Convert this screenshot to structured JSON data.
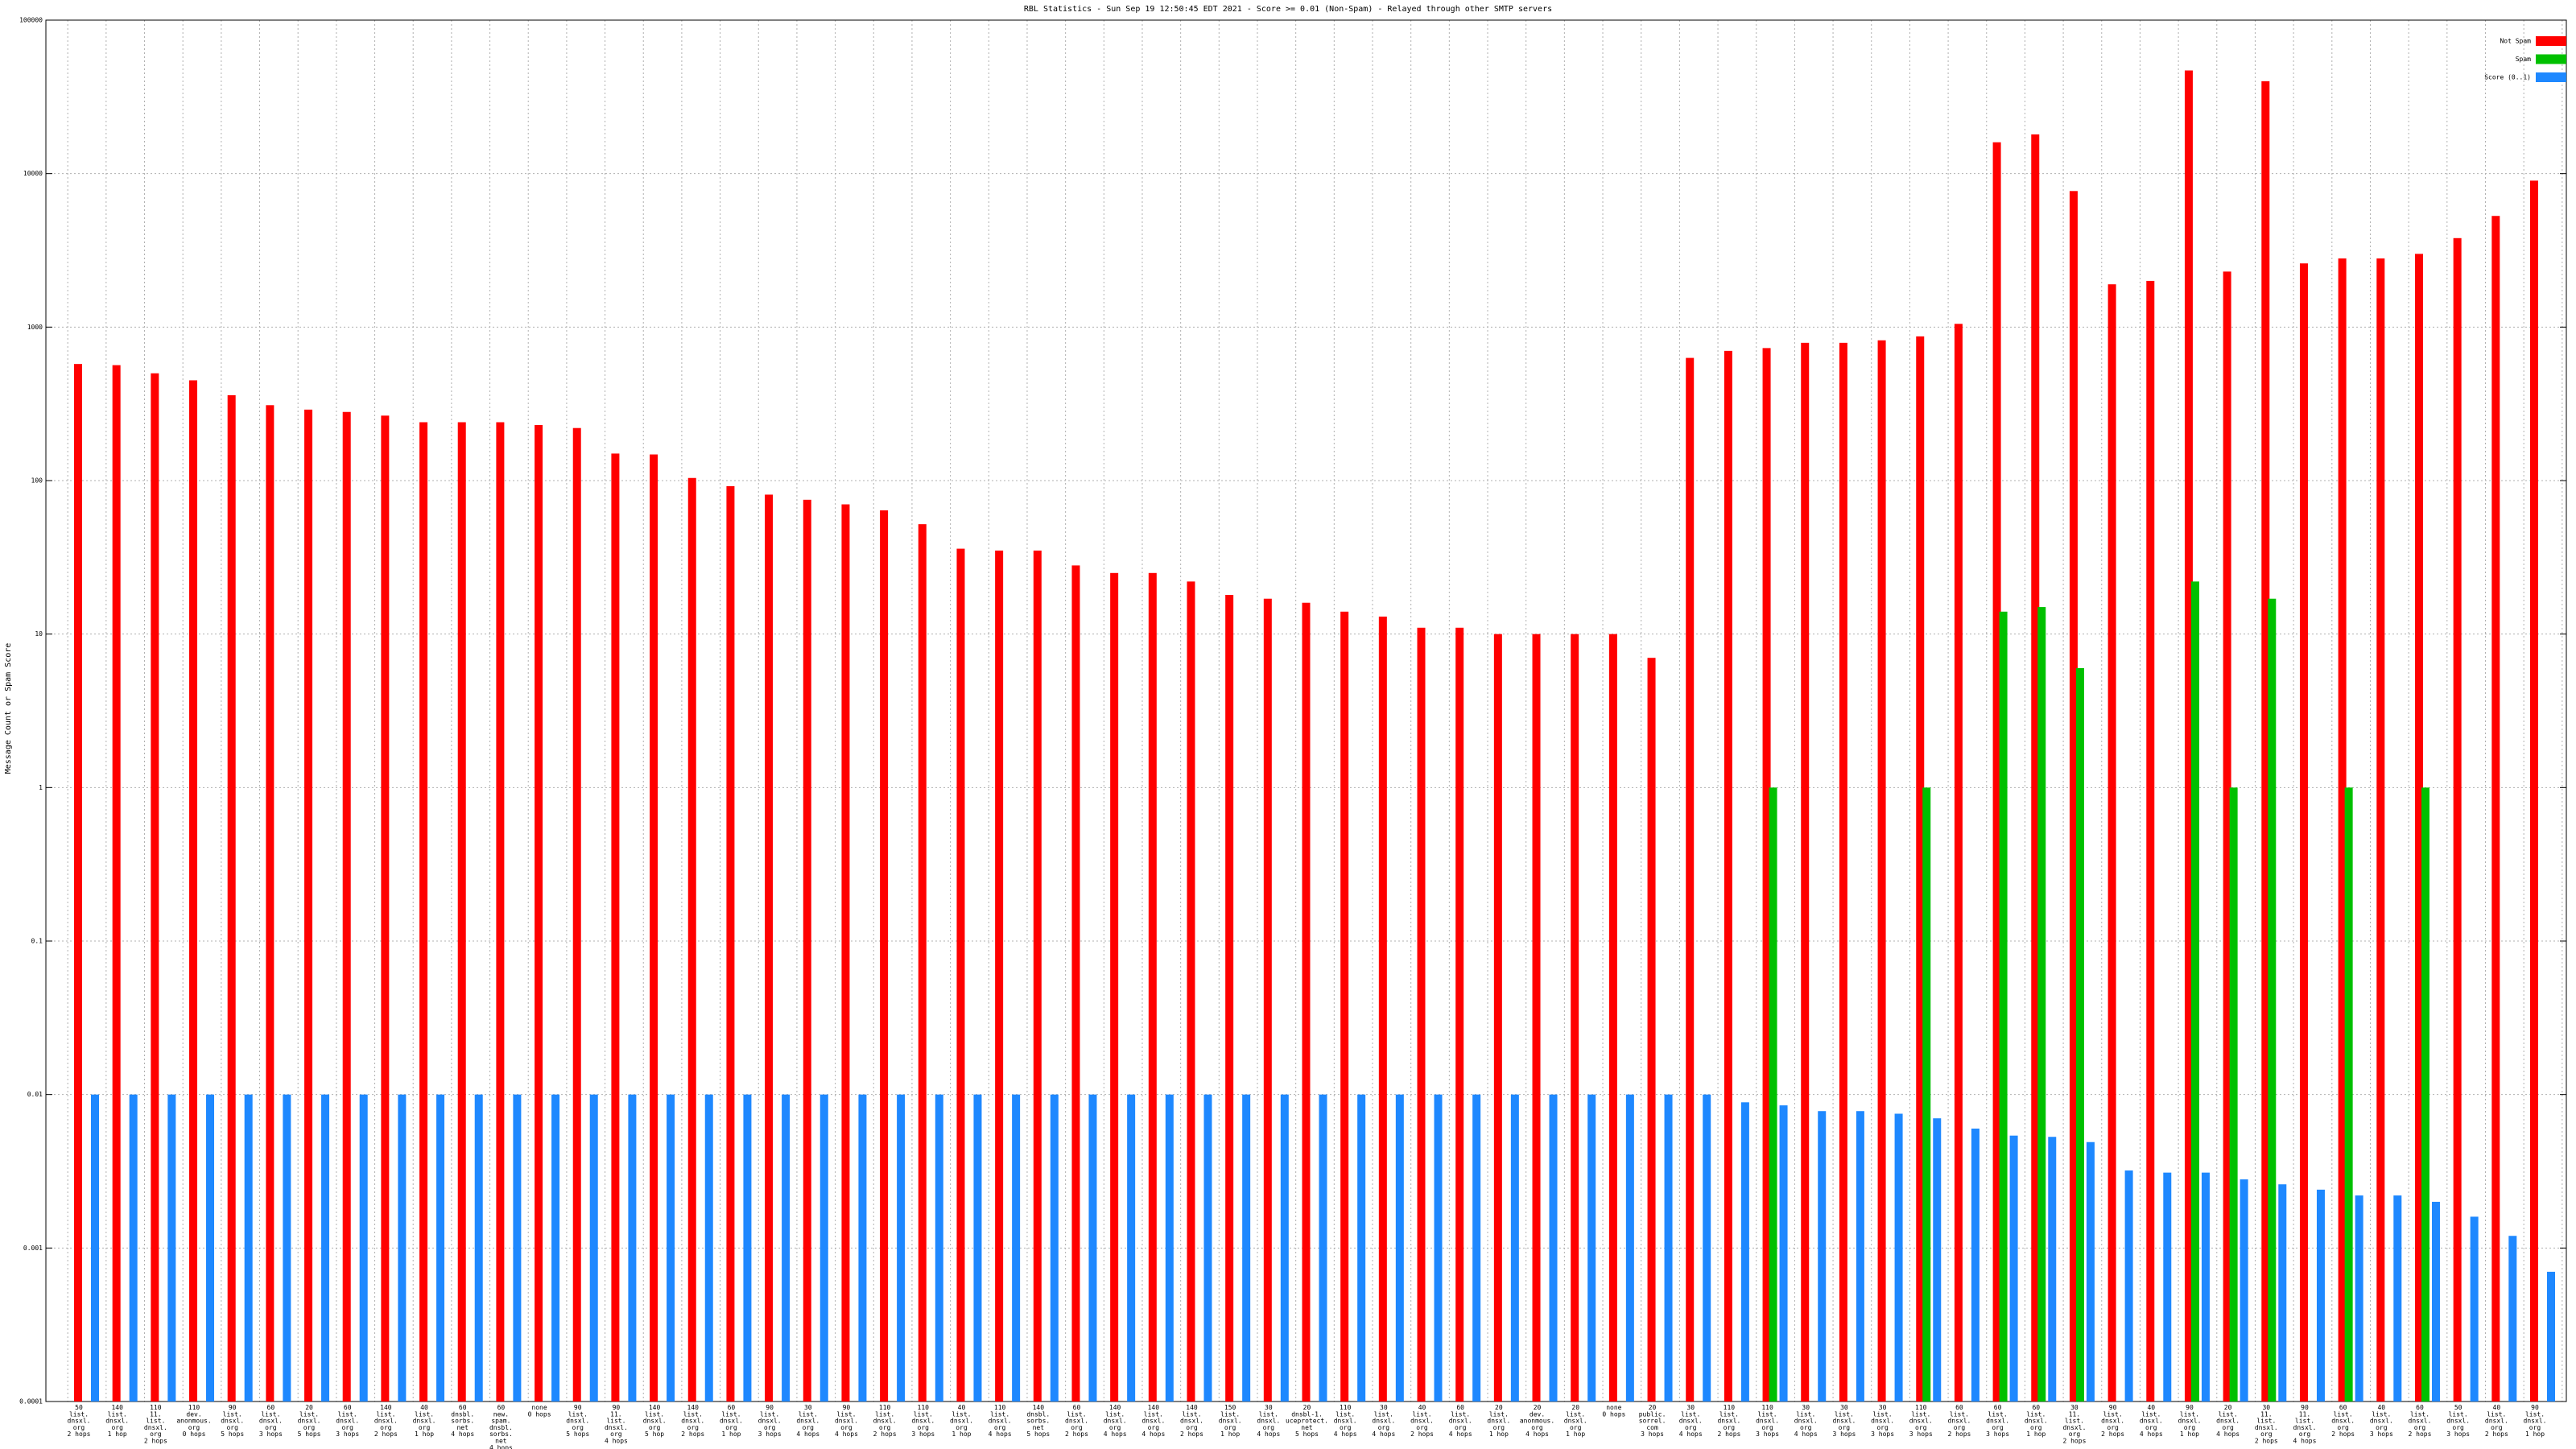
{
  "chart_data": {
    "type": "bar",
    "title": "RBL Statistics - Sun Sep 19 12:50:45 EDT 2021 - Score >= 0.01 (Non-Spam) - Relayed through other SMTP servers",
    "y_label": "Message Count or Spam Score",
    "log_scale": true,
    "grid": true,
    "legend": "top-right",
    "ylim": [
      0.0001,
      100000
    ],
    "yticks": [
      0.0001,
      0.001,
      0.01,
      0.1,
      1,
      10,
      100,
      1000,
      10000,
      100000
    ],
    "categories": [
      "50\nlist.\ndnsxl.\norg\n2 hops",
      "140\nlist.\ndnsxl.\norg\n1 hop",
      "110\n11.\nlist.\ndnsxl.\norg\n2 hops",
      "110\ndev.\nanonmous.\norg\n0 hops",
      "90\nlist.\ndnsxl.\norg\n5 hops",
      "60\nlist.\ndnsxl.\norg\n3 hops",
      "20\nlist.\ndnsxl.\norg\n5 hops",
      "60\nlist.\ndnsxl.\norg\n3 hops",
      "140\nlist.\ndnsxl.\norg\n2 hops",
      "40\nlist.\ndnsxl.\norg\n1 hop",
      "60\ndnsbl.\nsorbs.\nnet\n4 hops",
      "60\nnew.\nspam.\ndnsbl.\nsorbs.\nnet\n4 hops",
      "none\n0 hops",
      "90\nlist.\ndnsxl.\norg\n5 hops",
      "90\n11.\nlist.\ndnsxl.\norg\n4 hops",
      "140\nlist.\ndnsxl.\norg\n5 hop",
      "140\nlist.\ndnsxl.\norg\n2 hops",
      "60\nlist.\ndnsxl.\norg\n1 hop",
      "90\nlist.\ndnsxl.\norg\n3 hops",
      "30\nlist.\ndnsxl.\norg\n4 hops",
      "90\nlist.\ndnsxl.\norg\n4 hops",
      "110\nlist.\ndnsxl.\norg\n2 hops",
      "110\nlist.\ndnsxl.\norg\n3 hops",
      "40\nlist.\ndnsxl.\norg\n1 hop",
      "110\nlist.\ndnsxl.\norg\n4 hops",
      "140\ndnsbl.\nsorbs.\nnet\n5 hops",
      "60\nlist.\ndnsxl.\norg\n2 hops",
      "140\nlist.\ndnsxl.\norg\n4 hops",
      "140\nlist.\ndnsxl.\norg\n4 hops",
      "140\nlist.\ndnsxl.\norg\n2 hops",
      "150\nlist.\ndnsxl.\norg\n1 hop",
      "30\nlist.\ndnsxl.\norg\n4 hops",
      "20\ndnsbl-1.\nuceprotect.\nnet\n5 hops",
      "110\nlist.\ndnsxl.\norg\n4 hops",
      "30\nlist.\ndnsxl.\norg\n4 hops",
      "40\nlist.\ndnsxl.\norg\n2 hops",
      "60\nlist.\ndnsxl.\norg\n4 hops",
      "20\nlist.\ndnsxl.\norg\n1 hop",
      "20\ndev.\nanonmous.\norg\n4 hops",
      "20\nlist.\ndnsxl.\norg\n1 hop",
      "none\n0 hops",
      "20\npublic.\nsorrel.\ncom\n3 hops",
      "30\nlist.\ndnsxl.\norg\n4 hops",
      "110\nlist.\ndnsxl.\norg\n2 hops",
      "110\nlist.\ndnsxl.\norg\n3 hops",
      "30\nlist.\ndnsxl.\norg\n4 hops",
      "30\nlist.\ndnsxl.\norg\n3 hops",
      "30\nlist.\ndnsxl.\norg\n3 hops",
      "110\nlist.\ndnsxl.\norg\n3 hops",
      "60\nlist.\ndnsxl.\norg\n2 hops",
      "60\nlist.\ndnsxl.\norg\n3 hops",
      "60\nlist.\ndnsxl.\norg\n1 hop",
      "30\n11.\nlist.\ndnsxl.\norg\n2 hops",
      "90\nlist.\ndnsxl.\norg\n2 hops",
      "40\nlist.\ndnsxl.\norg\n4 hops",
      "90\nlist.\ndnsxl.\norg\n1 hop",
      "20\nlist.\ndnsxl.\norg\n4 hops",
      "30\n11.\nlist.\ndnsxl.\norg\n2 hops",
      "90\n11.\nlist.\ndnsxl.\norg\n4 hops",
      "60\nlist.\ndnsxl.\norg\n2 hops",
      "40\nlist.\ndnsxl.\norg\n3 hops",
      "60\nlist.\ndnsxl.\norg\n2 hops",
      "50\nlist.\ndnsxl.\norg\n3 hops",
      "40\nlist.\ndnsxl.\norg\n2 hops",
      "90\nlist.\ndnsxl.\norg\n1 hop"
    ],
    "series": [
      {
        "name": "Not Spam",
        "color": "#ff0000",
        "values": [
          575,
          565,
          500,
          450,
          360,
          310,
          290,
          280,
          265,
          240,
          240,
          240,
          230,
          220,
          150,
          148,
          104,
          92,
          81,
          75,
          70,
          64,
          52,
          36,
          35,
          35,
          28,
          25,
          25,
          22,
          18,
          17,
          16,
          14,
          13,
          11,
          11,
          10,
          10,
          10,
          10,
          7,
          630,
          700,
          730,
          790,
          790,
          820,
          870,
          1050,
          16000,
          18000,
          7700,
          1900,
          2000,
          47000,
          2300,
          40000,
          2600,
          2800,
          2800,
          3000,
          3800,
          5300,
          9000
        ]
      },
      {
        "name": "Spam",
        "color": "#00c000",
        "values": [
          0,
          0,
          0,
          0,
          0,
          0,
          0,
          0,
          0,
          0,
          0,
          0,
          0,
          0,
          0,
          0,
          0,
          0,
          0,
          0,
          0,
          0,
          0,
          0,
          0,
          0,
          0,
          0,
          0,
          0,
          0,
          0,
          0,
          0,
          0,
          0,
          0,
          0,
          0,
          0,
          0,
          0,
          0,
          0,
          1,
          0,
          0,
          0,
          1,
          0,
          14,
          15,
          6,
          0,
          0,
          22,
          1,
          17,
          0,
          1,
          0,
          1,
          0,
          0,
          0
        ]
      },
      {
        "name": "Score (0..1)",
        "color": "#1e88ff",
        "values": [
          0.01,
          0.01,
          0.01,
          0.01,
          0.01,
          0.01,
          0.01,
          0.01,
          0.01,
          0.01,
          0.01,
          0.01,
          0.01,
          0.01,
          0.01,
          0.01,
          0.01,
          0.01,
          0.01,
          0.01,
          0.01,
          0.01,
          0.01,
          0.01,
          0.01,
          0.01,
          0.01,
          0.01,
          0.01,
          0.01,
          0.01,
          0.01,
          0.01,
          0.01,
          0.01,
          0.01,
          0.01,
          0.01,
          0.01,
          0.01,
          0.01,
          0.01,
          0.01,
          0.0089,
          0.0085,
          0.0078,
          0.0078,
          0.0075,
          0.007,
          0.006,
          0.0054,
          0.0053,
          0.0049,
          0.0032,
          0.0031,
          0.0031,
          0.0028,
          0.0026,
          0.0024,
          0.0022,
          0.0022,
          0.002,
          0.0016,
          0.0012,
          0.0007
        ]
      }
    ]
  }
}
